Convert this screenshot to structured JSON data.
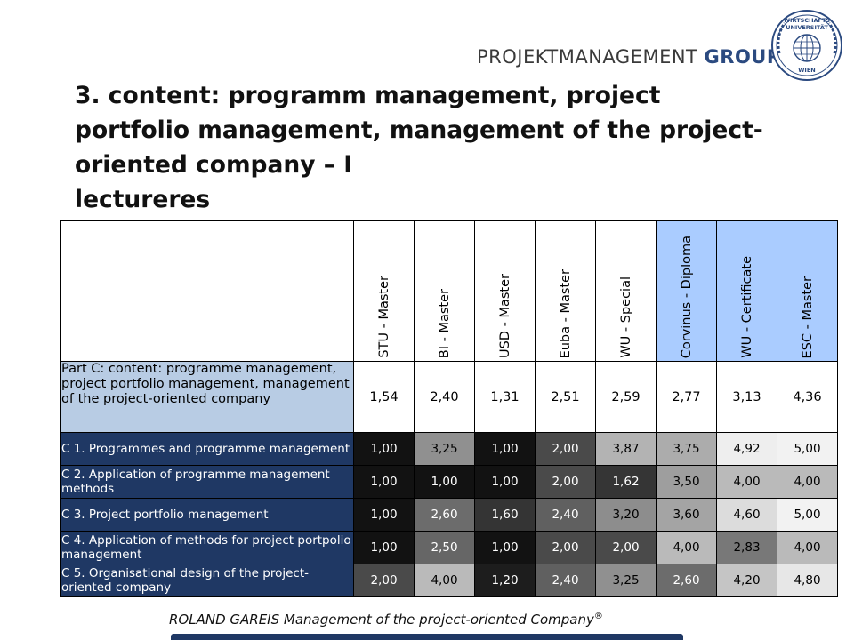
{
  "logo": {
    "text_regular": "PROJEKTMANAGEMENT ",
    "text_bold": "GROUP",
    "seal_line1": "WIRTSCHAFTS",
    "seal_line2": "UNIVERSITÄT",
    "seal_line3": "WIEN"
  },
  "title": {
    "line1": "3. content: programm management, project",
    "line2": "portfolio management, management of the project-",
    "line3": "oriented company – I",
    "line4": "lectureres"
  },
  "columns": [
    "STU - Master",
    "BI - Master",
    "USD - Master",
    "Euba - Master",
    "WU - Special",
    "Corvinus - Diploma",
    "WU - Certificate",
    "ESC - Master"
  ],
  "highlighted_columns": [
    5,
    6,
    7
  ],
  "part": {
    "label": "Part C: content: programme management, project portfolio management, management of the project-oriented company",
    "values": [
      "1,54",
      "2,40",
      "1,31",
      "2,51",
      "2,59",
      "2,77",
      "3,13",
      "4,36"
    ]
  },
  "rows": [
    {
      "label": "C 1. Programmes and programme management",
      "values": [
        "1,00",
        "3,25",
        "1,00",
        "2,00",
        "3,87",
        "3,75",
        "4,92",
        "5,00"
      ]
    },
    {
      "label": "C 2. Application of programme management methods",
      "values": [
        "1,00",
        "1,00",
        "1,00",
        "2,00",
        "1,62",
        "3,50",
        "4,00",
        "4,00"
      ]
    },
    {
      "label": "C 3. Project portfolio management",
      "values": [
        "1,00",
        "2,60",
        "1,60",
        "2,40",
        "3,20",
        "3,60",
        "4,60",
        "5,00"
      ]
    },
    {
      "label": "C 4. Application of methods for project portpolio management",
      "values": [
        "1,00",
        "2,50",
        "1,00",
        "2,00",
        "2,00",
        "4,00",
        "2,83",
        "4,00"
      ]
    },
    {
      "label": "C 5. Organisational design of the project-oriented company",
      "values": [
        "2,00",
        "4,00",
        "1,20",
        "2,40",
        "3,25",
        "2,60",
        "4,20",
        "4,80"
      ]
    }
  ],
  "colors": {
    "dark_navy": "#1f3864",
    "part_label_bg": "#b8cce4",
    "highlight_header": "#aaccff"
  },
  "footer": {
    "text": "ROLAND GAREIS Management of the project-oriented Company",
    "mark": "®"
  }
}
